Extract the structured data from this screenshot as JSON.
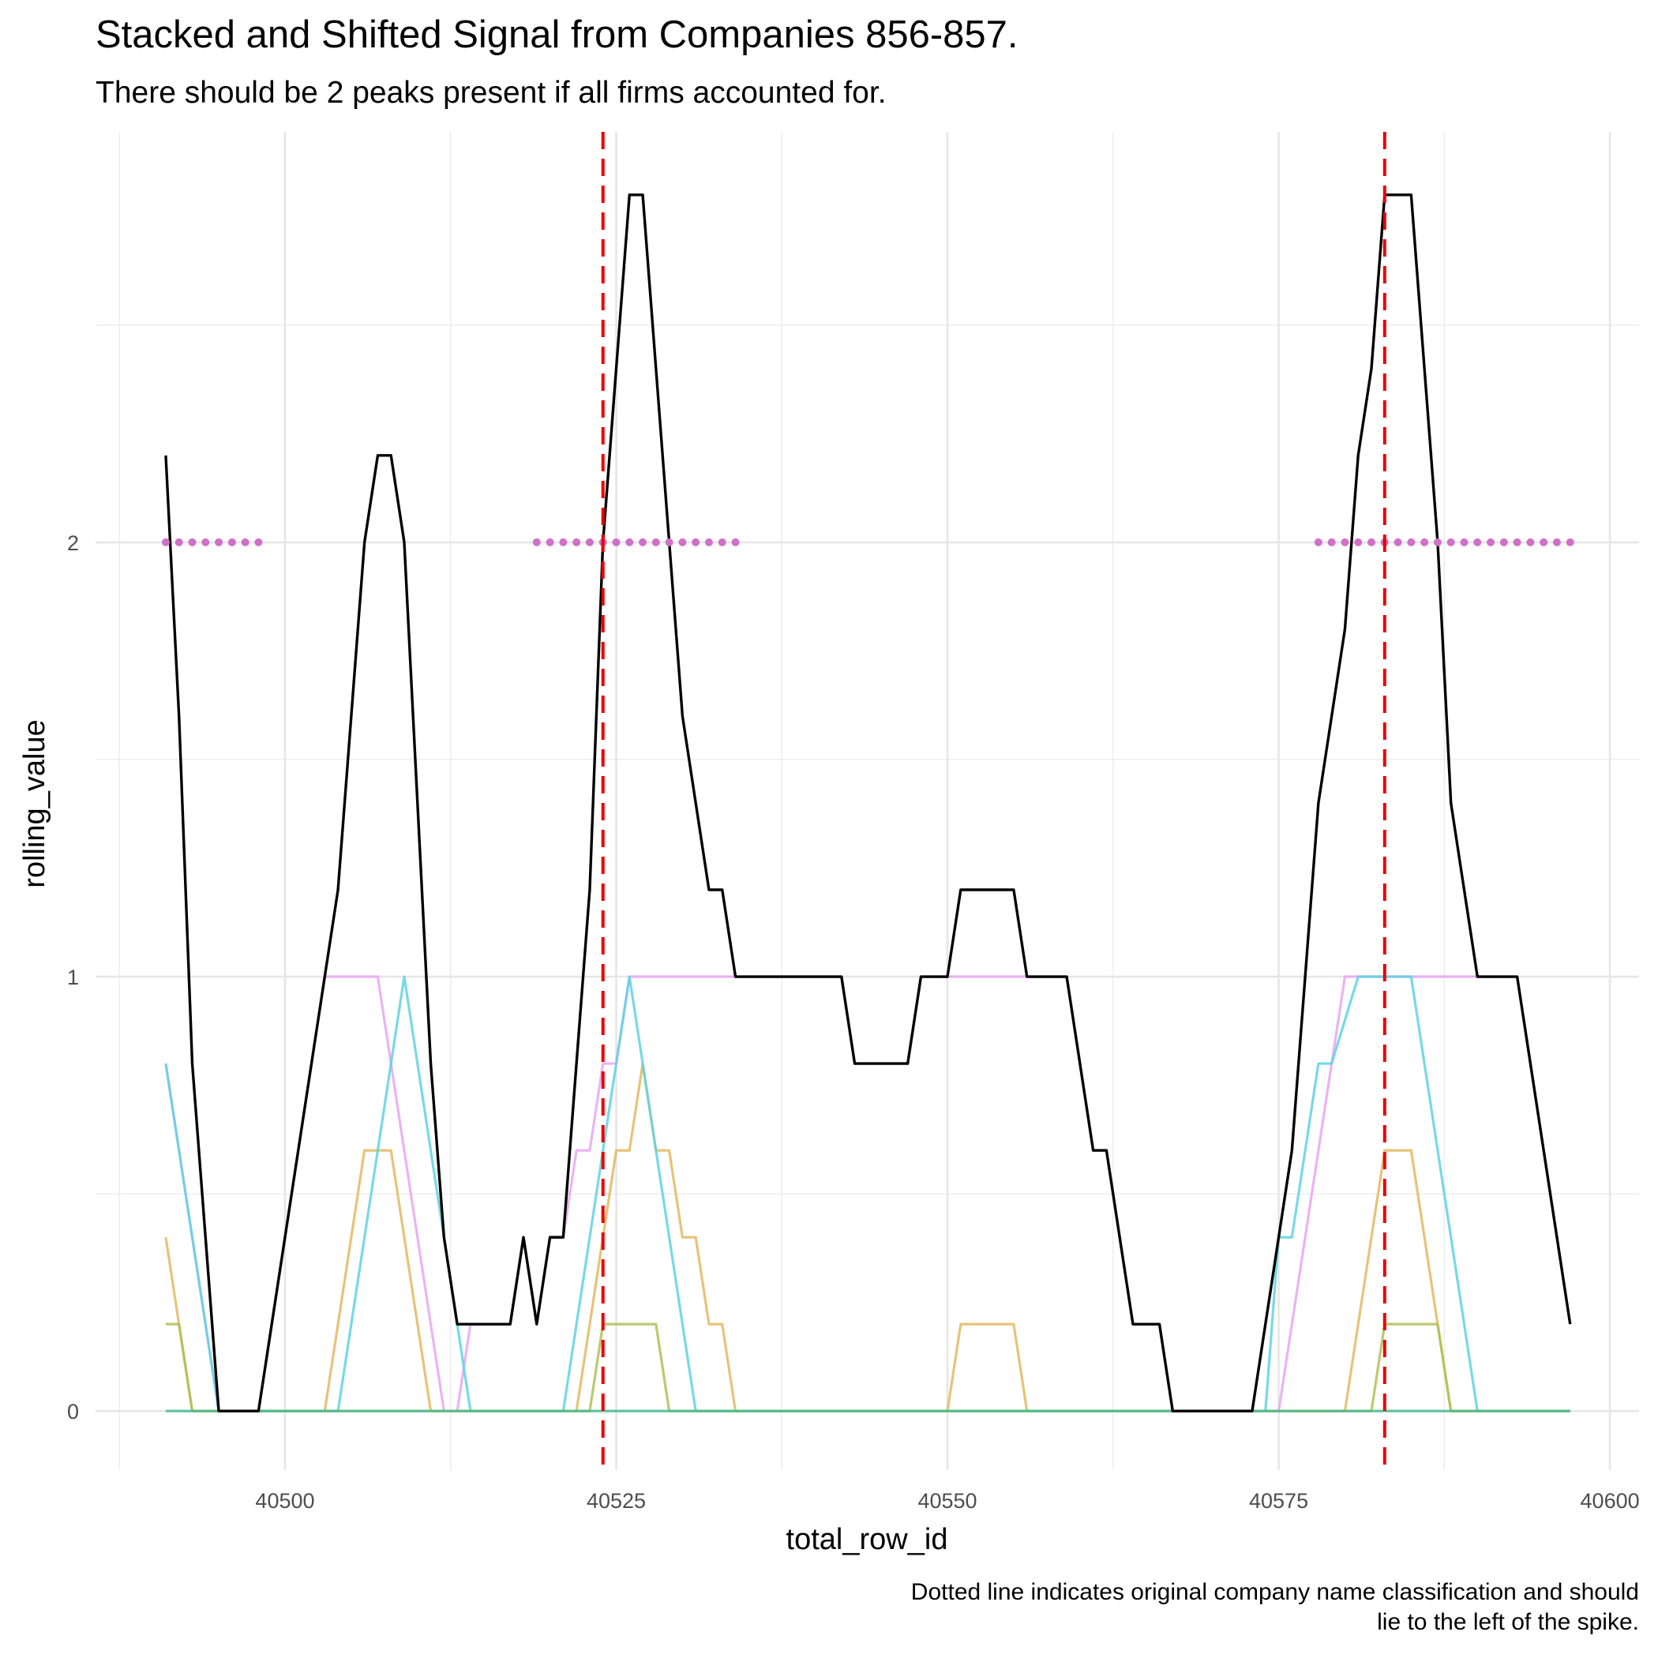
{
  "chart_data": {
    "type": "line",
    "title": "Stacked and Shifted Signal from Companies 856-857.",
    "subtitle": "There should be 2 peaks present if all firms accounted for.",
    "xlabel": "total_row_id",
    "ylabel": "rolling_value",
    "caption": [
      "Dotted line indicates original company name classification and should",
      "lie to the left of the spike."
    ],
    "xlim": [
      40485.7,
      40602.2
    ],
    "ylim": [
      -0.136,
      2.945
    ],
    "xticks": [
      40500,
      40525,
      40550,
      40575,
      40600
    ],
    "yticks": [
      0,
      1,
      2
    ],
    "xminor": [
      40487.5,
      40512.5,
      40537.5,
      40562.5,
      40587.5
    ],
    "yminor": [
      0.5,
      1.5,
      2.5
    ],
    "grid": true,
    "vlines": [
      40524,
      40583
    ],
    "vline_color": "#ee0000",
    "x": [
      40491,
      40492,
      40493,
      40494,
      40495,
      40496,
      40497,
      40498,
      40499,
      40500,
      40501,
      40502,
      40503,
      40504,
      40505,
      40506,
      40507,
      40508,
      40509,
      40510,
      40511,
      40512,
      40513,
      40514,
      40515,
      40516,
      40517,
      40518,
      40519,
      40520,
      40521,
      40522,
      40523,
      40524,
      40525,
      40526,
      40527,
      40528,
      40529,
      40530,
      40531,
      40532,
      40533,
      40534,
      40535,
      40536,
      40537,
      40538,
      40539,
      40540,
      40541,
      40542,
      40543,
      40544,
      40545,
      40546,
      40547,
      40548,
      40549,
      40550,
      40551,
      40552,
      40553,
      40554,
      40555,
      40556,
      40557,
      40558,
      40559,
      40560,
      40561,
      40562,
      40563,
      40564,
      40565,
      40566,
      40567,
      40568,
      40569,
      40570,
      40571,
      40572,
      40573,
      40574,
      40575,
      40576,
      40577,
      40578,
      40579,
      40580,
      40581,
      40582,
      40583,
      40584,
      40585,
      40586,
      40587,
      40588,
      40589,
      40590,
      40591,
      40592,
      40593,
      40594,
      40595,
      40596,
      40597
    ],
    "series": [
      {
        "color": "#e8a6f2",
        "style": "solid",
        "values": [
          0.8,
          0.6,
          0.4,
          0.2,
          0,
          0,
          0,
          0,
          0.2,
          0.4,
          0.6,
          0.8,
          1,
          1,
          1,
          1,
          1,
          0.8,
          0.6,
          0.4,
          0.2,
          0,
          0,
          0.2,
          0.2,
          0.2,
          0.2,
          0.4,
          0.2,
          0.4,
          0.4,
          0.6,
          0.6,
          0.8,
          0.8,
          1,
          1,
          1,
          1,
          1,
          1,
          1,
          1,
          1,
          1,
          1,
          1,
          1,
          1,
          1,
          1,
          1,
          0.8,
          0.8,
          0.8,
          0.8,
          0.8,
          1,
          1,
          1,
          1,
          1,
          1,
          1,
          1,
          1,
          1,
          1,
          1,
          0.8,
          0.6,
          0.6,
          0.4,
          0.2,
          0.2,
          0.2,
          0,
          0,
          0,
          0,
          0,
          0,
          0,
          0,
          0,
          0.2,
          0.4,
          0.6,
          0.8,
          1,
          1,
          1,
          1,
          1,
          1,
          1,
          1,
          1,
          1,
          1,
          1,
          1,
          1,
          0.8,
          0.6,
          0.4,
          0.2
        ]
      },
      {
        "color": "#e3b862",
        "style": "solid",
        "values": [
          0.4,
          0.2,
          0,
          0,
          0,
          0,
          0,
          0,
          0,
          0,
          0,
          0,
          0,
          0.2,
          0.4,
          0.6,
          0.6,
          0.6,
          0.4,
          0.2,
          0,
          0,
          0,
          0,
          0,
          0,
          0,
          0,
          0,
          0,
          0,
          0,
          0.2,
          0.4,
          0.6,
          0.6,
          0.8,
          0.6,
          0.6,
          0.4,
          0.4,
          0.2,
          0.2,
          0,
          0,
          0,
          0,
          0,
          0,
          0,
          0,
          0,
          0,
          0,
          0,
          0,
          0,
          0,
          0,
          0,
          0.2,
          0.2,
          0.2,
          0.2,
          0.2,
          0,
          0,
          0,
          0,
          0,
          0,
          0,
          0,
          0,
          0,
          0,
          0,
          0,
          0,
          0,
          0,
          0,
          0,
          0,
          0,
          0,
          0,
          0,
          0,
          0,
          0.2,
          0.4,
          0.6,
          0.6,
          0.6,
          0.4,
          0.2,
          0,
          0,
          0,
          0,
          0,
          0,
          0,
          0,
          0,
          0
        ]
      },
      {
        "color": "#5fd2e2",
        "style": "solid",
        "values": [
          0.8,
          0.6,
          0.4,
          0.2,
          0,
          0,
          0,
          0,
          0,
          0,
          0,
          0,
          0,
          0,
          0.2,
          0.4,
          0.6,
          0.8,
          1,
          0.8,
          0.6,
          0.4,
          0.2,
          0,
          0,
          0,
          0,
          0,
          0,
          0,
          0,
          0.2,
          0.4,
          0.6,
          0.8,
          1,
          0.8,
          0.6,
          0.4,
          0.2,
          0,
          0,
          0,
          0,
          0,
          0,
          0,
          0,
          0,
          0,
          0,
          0,
          0,
          0,
          0,
          0,
          0,
          0,
          0,
          0,
          0,
          0,
          0,
          0,
          0,
          0,
          0,
          0,
          0,
          0,
          0,
          0,
          0,
          0,
          0,
          0,
          0,
          0,
          0,
          0,
          0,
          0,
          0,
          0,
          0.4,
          0.4,
          0.6,
          0.8,
          0.8,
          0.9,
          1,
          1,
          1,
          1,
          1,
          0.8,
          0.6,
          0.4,
          0.2,
          0,
          0,
          0,
          0,
          0,
          0,
          0,
          0
        ]
      },
      {
        "color": "#b0c055",
        "style": "solid",
        "values": [
          0.2,
          0.2,
          0,
          0,
          0,
          0,
          0,
          0,
          0,
          0,
          0,
          0,
          0,
          0,
          0,
          0,
          0,
          0,
          0,
          0,
          0,
          0,
          0,
          0,
          0,
          0,
          0,
          0,
          0,
          0,
          0,
          0,
          0,
          0.2,
          0.2,
          0.2,
          0.2,
          0.2,
          0,
          0,
          0,
          0,
          0,
          0,
          0,
          0,
          0,
          0,
          0,
          0,
          0,
          0,
          0,
          0,
          0,
          0,
          0,
          0,
          0,
          0,
          0,
          0,
          0,
          0,
          0,
          0,
          0,
          0,
          0,
          0,
          0,
          0,
          0,
          0,
          0,
          0,
          0,
          0,
          0,
          0,
          0,
          0,
          0,
          0,
          0,
          0,
          0,
          0,
          0,
          0,
          0,
          0,
          0.2,
          0.2,
          0.2,
          0.2,
          0.2,
          0,
          0,
          0,
          0,
          0,
          0,
          0,
          0,
          0,
          0
        ]
      },
      {
        "color": "#45b88f",
        "style": "solid",
        "values": [
          0,
          0,
          0,
          0,
          0,
          0,
          0,
          0,
          0,
          0,
          0,
          0,
          0,
          0,
          0,
          0,
          0,
          0,
          0,
          0,
          0,
          0,
          0,
          0,
          0,
          0,
          0,
          0,
          0,
          0,
          0,
          0,
          0,
          0,
          0,
          0,
          0,
          0,
          0,
          0,
          0,
          0,
          0,
          0,
          0,
          0,
          0,
          0,
          0,
          0,
          0,
          0,
          0,
          0,
          0,
          0,
          0,
          0,
          0,
          0,
          0,
          0,
          0,
          0,
          0,
          0,
          0,
          0,
          0,
          0,
          0,
          0,
          0,
          0,
          0,
          0,
          0,
          0,
          0,
          0,
          0,
          0,
          0,
          0,
          0,
          0,
          0,
          0,
          0,
          0,
          0,
          0,
          0,
          0,
          0,
          0,
          0,
          0,
          0,
          0,
          0,
          0,
          0,
          0,
          0,
          0,
          0
        ]
      },
      {
        "color": "#000000",
        "style": "solid",
        "values": [
          2.2,
          1.6,
          0.8,
          0.4,
          0,
          0,
          0,
          0,
          0.2,
          0.4,
          0.6,
          0.8,
          1,
          1.2,
          1.6,
          2,
          2.2,
          2.2,
          2,
          1.4,
          0.8,
          0.4,
          0.2,
          0.2,
          0.2,
          0.2,
          0.2,
          0.4,
          0.2,
          0.4,
          0.4,
          0.8,
          1.2,
          2,
          2.4,
          2.8,
          2.8,
          2.4,
          2,
          1.6,
          1.4,
          1.2,
          1.2,
          1,
          1,
          1,
          1,
          1,
          1,
          1,
          1,
          1,
          0.8,
          0.8,
          0.8,
          0.8,
          0.8,
          1,
          1,
          1,
          1.2,
          1.2,
          1.2,
          1.2,
          1.2,
          1,
          1,
          1,
          1,
          0.8,
          0.6,
          0.6,
          0.4,
          0.2,
          0.2,
          0.2,
          0,
          0,
          0,
          0,
          0,
          0,
          0,
          0.2,
          0.4,
          0.6,
          1,
          1.4,
          1.6,
          1.8,
          2.2,
          2.4,
          2.8,
          2.8,
          2.8,
          2.4,
          2,
          1.4,
          1.2,
          1,
          1,
          1,
          1,
          0.8,
          0.6,
          0.4,
          0.2
        ]
      },
      {
        "color": "#d070c8",
        "style": "dotted",
        "values": [
          2,
          2,
          2,
          2,
          2,
          2,
          2,
          2,
          null,
          null,
          null,
          null,
          null,
          null,
          null,
          null,
          null,
          null,
          null,
          null,
          null,
          null,
          null,
          null,
          null,
          null,
          null,
          null,
          2,
          2,
          2,
          2,
          2,
          2,
          2,
          2,
          2,
          2,
          2,
          2,
          2,
          2,
          2,
          2,
          null,
          null,
          null,
          null,
          null,
          null,
          null,
          null,
          null,
          null,
          null,
          null,
          null,
          null,
          null,
          null,
          null,
          null,
          null,
          null,
          null,
          null,
          null,
          null,
          null,
          null,
          null,
          null,
          null,
          null,
          null,
          null,
          null,
          null,
          null,
          null,
          null,
          null,
          null,
          null,
          null,
          null,
          null,
          2,
          2,
          2,
          2,
          2,
          2,
          2,
          2,
          2,
          2,
          2,
          2,
          2,
          2,
          2,
          2,
          2,
          2,
          2,
          2
        ]
      }
    ]
  }
}
